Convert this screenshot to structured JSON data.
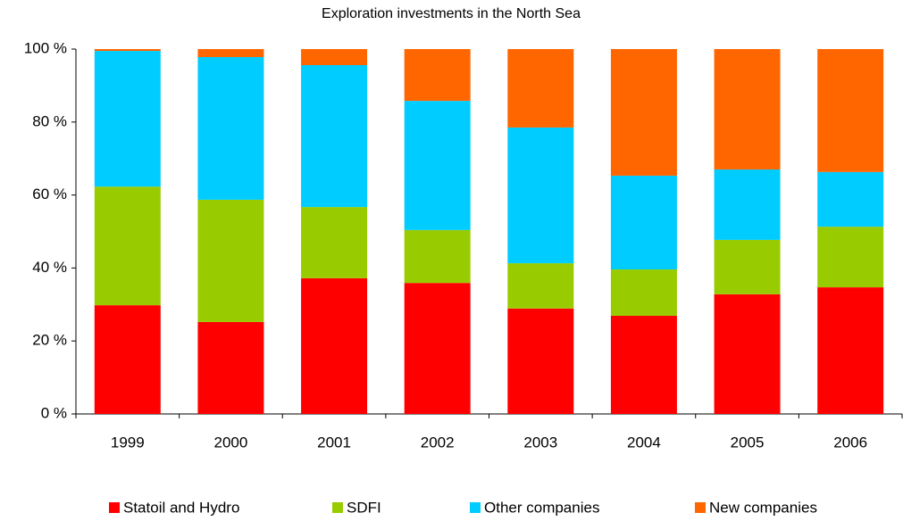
{
  "chart_data": {
    "type": "stacked_bar",
    "title": "Exploration investments in the North Sea",
    "categories": [
      "1999",
      "2000",
      "2001",
      "2002",
      "2003",
      "2004",
      "2005",
      "2006"
    ],
    "series": [
      {
        "name": "Statoil and Hydro",
        "color": "#ff0000",
        "values": [
          29.8,
          25.2,
          37.2,
          35.9,
          28.9,
          26.9,
          32.8,
          34.7
        ]
      },
      {
        "name": "SDFI",
        "color": "#99cc00",
        "values": [
          32.5,
          33.5,
          19.5,
          14.5,
          12.4,
          12.7,
          14.9,
          16.6
        ]
      },
      {
        "name": "Other companies",
        "color": "#00ccff",
        "values": [
          37.2,
          39.1,
          38.9,
          35.4,
          37.2,
          25.7,
          19.3,
          15.0
        ]
      },
      {
        "name": "New companies",
        "color": "#ff6600",
        "values": [
          0.5,
          2.2,
          4.4,
          14.2,
          21.5,
          34.7,
          33.0,
          33.7
        ]
      }
    ],
    "ylim": [
      0,
      100
    ],
    "yticks": [
      {
        "value": 0,
        "label": "0 %"
      },
      {
        "value": 20,
        "label": "20 %"
      },
      {
        "value": 40,
        "label": "40 %"
      },
      {
        "value": 60,
        "label": "60 %"
      },
      {
        "value": 80,
        "label": "80 %"
      },
      {
        "value": 100,
        "label": "100 %"
      }
    ],
    "legend": "bottom"
  }
}
